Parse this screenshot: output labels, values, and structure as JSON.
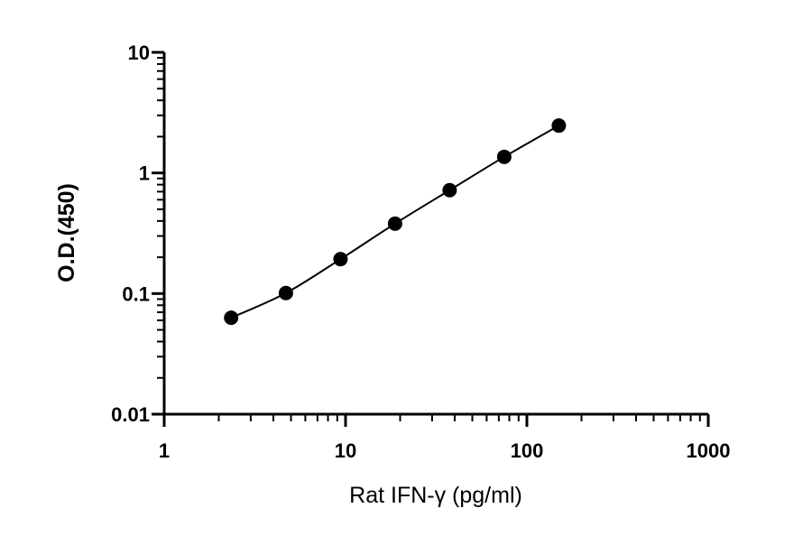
{
  "chart_data": {
    "type": "scatter",
    "xlabel": "Rat IFN-γ (pg/ml)",
    "ylabel": "O.D.(450)",
    "x_scale": "log",
    "y_scale": "log",
    "xlim": [
      1,
      1000
    ],
    "ylim": [
      0.01,
      10
    ],
    "x_ticks": [
      1,
      10,
      100,
      1000
    ],
    "x_tick_labels": [
      "1",
      "10",
      "100",
      "1000"
    ],
    "y_ticks": [
      0.01,
      0.1,
      1,
      10
    ],
    "y_tick_labels": [
      "0.01",
      "0.1",
      "1",
      "10"
    ],
    "grid": false,
    "fit_curve": true,
    "marker_color": "#000000",
    "series": [
      {
        "x": [
          2.34,
          4.69,
          9.38,
          18.75,
          37.5,
          75,
          150
        ],
        "y": [
          0.063,
          0.101,
          0.193,
          0.38,
          0.72,
          1.36,
          2.47
        ]
      }
    ]
  }
}
